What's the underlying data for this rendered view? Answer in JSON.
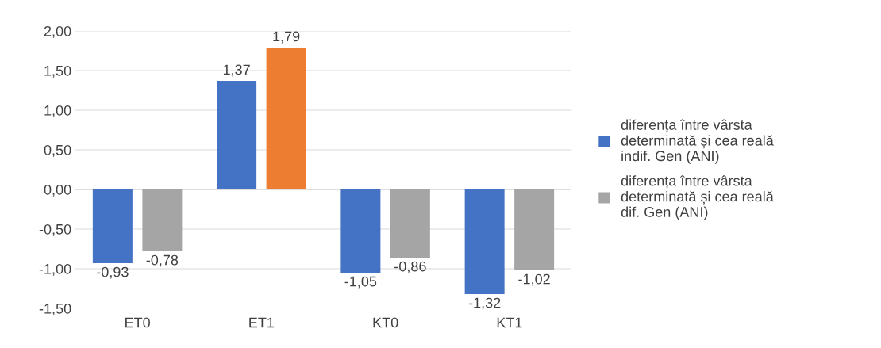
{
  "chart_data": {
    "type": "bar",
    "categories": [
      "ET0",
      "ET1",
      "KT0",
      "KT1"
    ],
    "series": [
      {
        "name": "diferența între vârsta determinată și cea reală indif. Gen (ANI)",
        "color": "#4472c4",
        "values": [
          -0.93,
          1.37,
          -1.05,
          -1.32
        ],
        "value_labels": [
          "-0,93",
          "1,37",
          "-1,05",
          "-1,32"
        ]
      },
      {
        "name": "diferența între vârsta determinată și cea reală dif. Gen (ANI)",
        "color": "#a5a5a5",
        "colors": [
          "#a5a5a5",
          "#ed7d31",
          "#a5a5a5",
          "#a5a5a5"
        ],
        "values": [
          -0.78,
          1.79,
          -0.86,
          -1.02
        ],
        "value_labels": [
          "-0,78",
          "1,79",
          "-0,86",
          "-1,02"
        ]
      }
    ],
    "ylim": [
      -1.5,
      2.0
    ],
    "yticks": [
      {
        "value": -1.5,
        "label": "-1,50"
      },
      {
        "value": -1.0,
        "label": "-1,00"
      },
      {
        "value": -0.5,
        "label": "-0,50"
      },
      {
        "value": 0.0,
        "label": "0,00"
      },
      {
        "value": 0.5,
        "label": "0,50"
      },
      {
        "value": 1.0,
        "label": "1,00"
      },
      {
        "value": 1.5,
        "label": "1,50"
      },
      {
        "value": 2.0,
        "label": "2,00"
      }
    ],
    "grid": "y",
    "legend": "right"
  }
}
